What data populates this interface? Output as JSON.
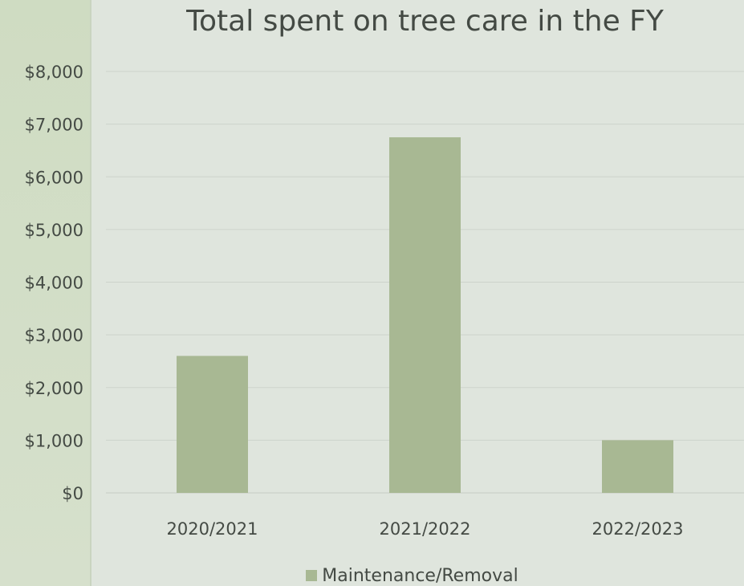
{
  "chart_data": {
    "type": "bar",
    "title": "Total spent on tree care in the FY",
    "categories": [
      "2020/2021",
      "2021/2022",
      "2022/2023"
    ],
    "series": [
      {
        "name": "Maintenance/Removal",
        "values": [
          2600,
          6750,
          1000
        ]
      }
    ],
    "ylim": [
      0,
      8000
    ],
    "yticks": [
      0,
      1000,
      2000,
      3000,
      4000,
      5000,
      6000,
      7000,
      8000
    ],
    "ytick_labels": [
      "$0",
      "$1,000",
      "$2,000",
      "$3,000",
      "$4,000",
      "$5,000",
      "$6,000",
      "$7,000",
      "$8,000"
    ],
    "xlabel": "",
    "ylabel": "",
    "grid": true,
    "legend_position": "bottom",
    "colors": {
      "bar": "#a8b893",
      "grid": "#cdd3cb",
      "text": "#444a44"
    }
  }
}
